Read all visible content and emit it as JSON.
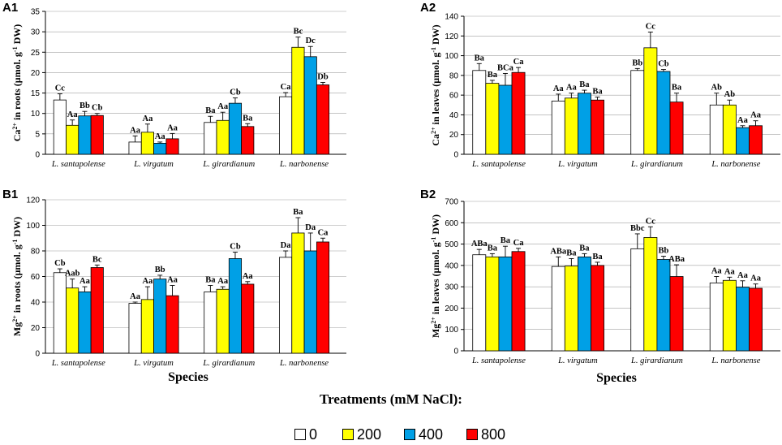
{
  "colors": {
    "t0": "#ffffff",
    "t200": "#ffff00",
    "t400": "#00a0e6",
    "t800": "#ff0000",
    "axis": "#000000",
    "grid": "#a0a0a0"
  },
  "species": [
    "L. santapolense",
    "L. virgatum",
    "L. girardianum",
    "L. narbonense"
  ],
  "xlabel": "Species",
  "legend": {
    "title": "Treatments (mM NaCl):",
    "items": [
      {
        "name": "0",
        "color": "#ffffff"
      },
      {
        "name": "200",
        "color": "#ffff00"
      },
      {
        "name": "400",
        "color": "#00a0e6"
      },
      {
        "name": "800",
        "color": "#ff0000"
      }
    ]
  },
  "chart_data": [
    {
      "id": "A1",
      "type": "bar",
      "panel_label": "A1",
      "ylabel_pre": "Ca",
      "ylabel_sup": "2+",
      "ylabel_mid": " in roots (μmol. g",
      "ylabel_sup2": "-1",
      "ylabel_post": " DW)",
      "ylim": [
        0,
        35
      ],
      "ticks": [
        0,
        5,
        10,
        15,
        20,
        25,
        30,
        35
      ],
      "categories": [
        "L. santapolense",
        "L. virgatum",
        "L. girardianum",
        "L. narbonense"
      ],
      "series": [
        {
          "name": "0",
          "values": [
            13.3,
            3.0,
            7.8,
            14.1
          ],
          "errors": [
            1.5,
            1.5,
            1.5,
            1.0
          ],
          "letters": [
            "Cc",
            "Aa",
            "Ba",
            "Ca"
          ]
        },
        {
          "name": "200",
          "values": [
            7.1,
            5.4,
            8.3,
            26.2
          ],
          "errors": [
            1.3,
            2.0,
            2.0,
            2.5
          ],
          "letters": [
            "Aa",
            "Aa",
            "Aa",
            "Bc"
          ]
        },
        {
          "name": "400",
          "values": [
            9.4,
            2.7,
            12.5,
            23.9
          ],
          "errors": [
            1.1,
            0.3,
            1.3,
            2.5
          ],
          "letters": [
            "Bb",
            "Aa",
            "Cb",
            "Dc"
          ]
        },
        {
          "name": "800",
          "values": [
            9.5,
            3.8,
            6.8,
            17.0
          ],
          "errors": [
            0.5,
            1.3,
            0.7,
            0.6
          ],
          "letters": [
            "Cb",
            "Aa",
            "Ba",
            "Db"
          ]
        }
      ]
    },
    {
      "id": "A2",
      "type": "bar",
      "panel_label": "A2",
      "ylabel_pre": "Ca",
      "ylabel_sup": "2+",
      "ylabel_mid": " in leaves (μmol. g",
      "ylabel_sup2": "-1",
      "ylabel_post": " DW)",
      "ylim": [
        0,
        140
      ],
      "ticks": [
        0,
        20,
        40,
        60,
        80,
        100,
        120,
        140
      ],
      "categories": [
        "L. santapolense",
        "L. virgatum",
        "L. girardianum",
        "L. narbonense"
      ],
      "series": [
        {
          "name": "0",
          "values": [
            85,
            54,
            85,
            50
          ],
          "errors": [
            7,
            7,
            2,
            12
          ],
          "letters": [
            "Ba",
            "Aa",
            "Bb",
            "Ab"
          ]
        },
        {
          "name": "200",
          "values": [
            72,
            57,
            108,
            50
          ],
          "errors": [
            3,
            5,
            16,
            5
          ],
          "letters": [
            "Ba",
            "Aa",
            "Cc",
            "Ab"
          ]
        },
        {
          "name": "400",
          "values": [
            70,
            62,
            84,
            27
          ],
          "errors": [
            12,
            3,
            2,
            2
          ],
          "letters": [
            "BCa",
            "Ba",
            "Cb",
            "Aa"
          ]
        },
        {
          "name": "800",
          "values": [
            83,
            55,
            53,
            29
          ],
          "errors": [
            5,
            3,
            9,
            5
          ],
          "letters": [
            "Ca",
            "Ba",
            "Ba",
            "Aa"
          ]
        }
      ]
    },
    {
      "id": "B1",
      "type": "bar",
      "panel_label": "B1",
      "ylabel_pre": "Mg",
      "ylabel_sup": "2+",
      "ylabel_mid": " in roots (μmol. g",
      "ylabel_sup2": "-1",
      "ylabel_post": " DW)",
      "ylim": [
        0,
        120
      ],
      "ticks": [
        0,
        20,
        40,
        60,
        80,
        100,
        120
      ],
      "categories": [
        "L. santapolense",
        "L. virgatum",
        "L. girardianum",
        "L. narbonense"
      ],
      "series": [
        {
          "name": "0",
          "values": [
            63,
            39,
            48,
            75
          ],
          "errors": [
            3,
            1,
            5,
            5
          ],
          "letters": [
            "Cb",
            "Aa",
            "Ba",
            "Da"
          ]
        },
        {
          "name": "200",
          "values": [
            51,
            42,
            50,
            94
          ],
          "errors": [
            7,
            10,
            2,
            12
          ],
          "letters": [
            "Aab",
            "Aa",
            "Aa",
            "Ba"
          ]
        },
        {
          "name": "400",
          "values": [
            48,
            58,
            74,
            80
          ],
          "errors": [
            4,
            3,
            5,
            14
          ],
          "letters": [
            "Aa",
            "Bb",
            "Cb",
            "Da"
          ]
        },
        {
          "name": "800",
          "values": [
            67,
            45,
            54,
            87
          ],
          "errors": [
            2,
            8,
            2,
            3
          ],
          "letters": [
            "Bc",
            "Aa",
            "Aa",
            "Ca"
          ]
        }
      ]
    },
    {
      "id": "B2",
      "type": "bar",
      "panel_label": "B2",
      "ylabel_pre": "Mg",
      "ylabel_sup": "2+",
      "ylabel_mid": " in leaves (μmol. g",
      "ylabel_sup2": "-1",
      "ylabel_post": " DW)",
      "ylim": [
        0,
        700
      ],
      "ticks": [
        0,
        100,
        200,
        300,
        400,
        500,
        600,
        700
      ],
      "categories": [
        "L. santapolense",
        "L. virgatum",
        "L. girardianum",
        "L. narbonense"
      ],
      "series": [
        {
          "name": "0",
          "values": [
            450,
            395,
            478,
            318
          ],
          "errors": [
            25,
            45,
            70,
            30
          ],
          "letters": [
            "ABa",
            "ABa",
            "Bbc",
            "Aa"
          ]
        },
        {
          "name": "200",
          "values": [
            440,
            397,
            531,
            330
          ],
          "errors": [
            15,
            35,
            50,
            15
          ],
          "letters": [
            "Ba",
            "Ba",
            "Cc",
            "Aa"
          ]
        },
        {
          "name": "400",
          "values": [
            440,
            440,
            428,
            298
          ],
          "errors": [
            50,
            15,
            15,
            30
          ],
          "letters": [
            "Ba",
            "Ba",
            "Bb",
            "Aa"
          ]
        },
        {
          "name": "800",
          "values": [
            465,
            400,
            348,
            293
          ],
          "errors": [
            15,
            15,
            55,
            20
          ],
          "letters": [
            "Ca",
            "Ba",
            "ABa",
            "Aa"
          ]
        }
      ]
    }
  ]
}
